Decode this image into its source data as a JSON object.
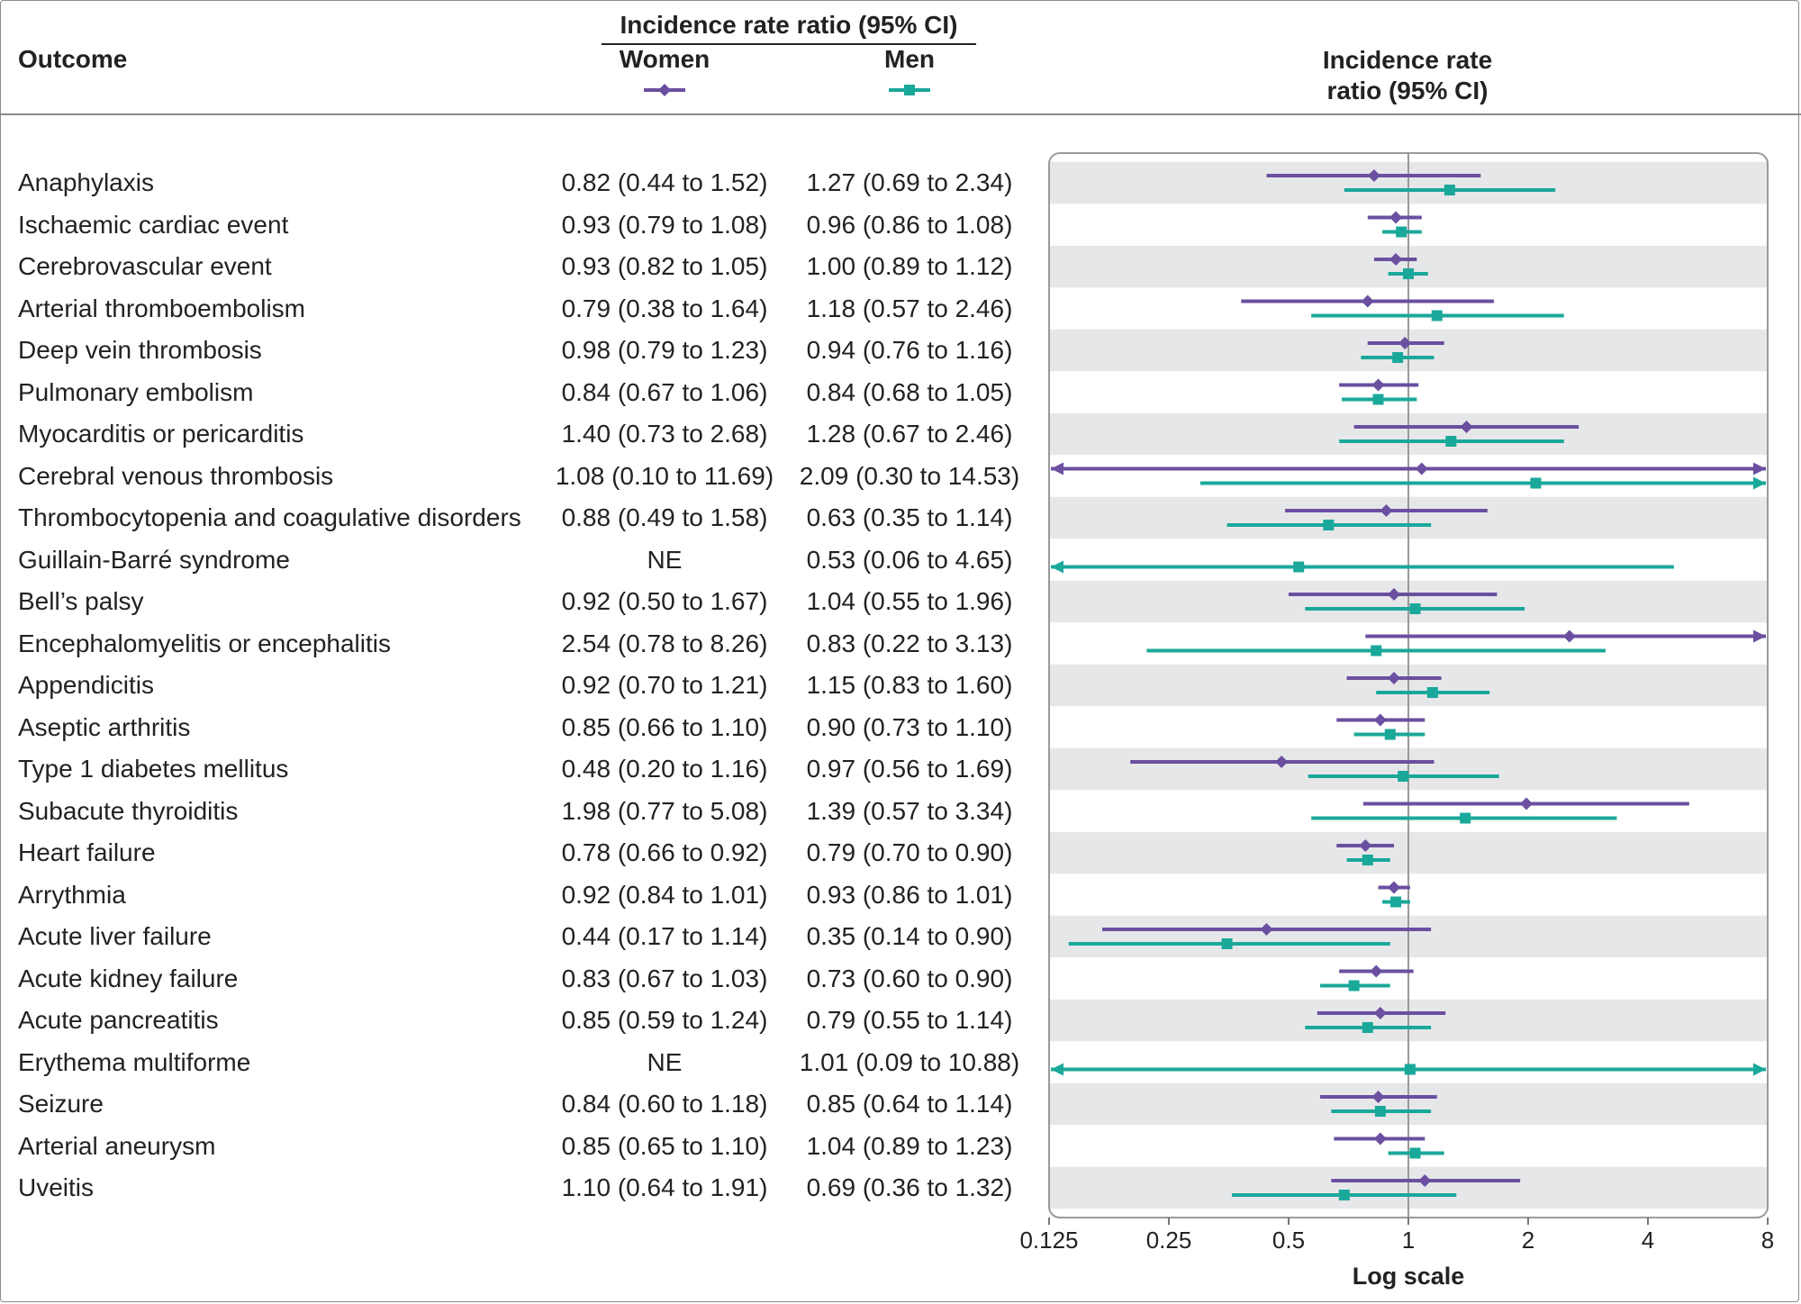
{
  "header": {
    "outcome_label": "Outcome",
    "group_label": "Incidence rate ratio (95% CI)",
    "women_label": "Women",
    "men_label": "Men",
    "plot_label_line1": "Incidence rate",
    "plot_label_line2": "ratio (95% CI)"
  },
  "colors": {
    "women": "#6b4fa0",
    "men": "#1aa89a",
    "band": "#e6e7e9",
    "refline": "#999999"
  },
  "chart_data": {
    "type": "forest",
    "xlabel": "Log scale",
    "xscale": "log2",
    "xlim": [
      0.125,
      8
    ],
    "xticks": [
      "0.125",
      "0.25",
      "0.5",
      "1",
      "2",
      "4",
      "8"
    ],
    "reference_line": 1,
    "series": [
      {
        "name": "Women",
        "marker": "diamond"
      },
      {
        "name": "Men",
        "marker": "square"
      }
    ],
    "rows": [
      {
        "outcome": "Anaphylaxis",
        "women_text": "0.82 (0.44 to 1.52)",
        "men_text": "1.27 (0.69 to 2.34)",
        "women": [
          0.82,
          0.44,
          1.52
        ],
        "men": [
          1.27,
          0.69,
          2.34
        ]
      },
      {
        "outcome": "Ischaemic cardiac event",
        "women_text": "0.93 (0.79 to 1.08)",
        "men_text": "0.96 (0.86 to 1.08)",
        "women": [
          0.93,
          0.79,
          1.08
        ],
        "men": [
          0.96,
          0.86,
          1.08
        ]
      },
      {
        "outcome": "Cerebrovascular event",
        "women_text": "0.93 (0.82 to 1.05)",
        "men_text": "1.00 (0.89 to 1.12)",
        "women": [
          0.93,
          0.82,
          1.05
        ],
        "men": [
          1.0,
          0.89,
          1.12
        ]
      },
      {
        "outcome": "Arterial thromboembolism",
        "women_text": "0.79 (0.38 to 1.64)",
        "men_text": "1.18 (0.57 to 2.46)",
        "women": [
          0.79,
          0.38,
          1.64
        ],
        "men": [
          1.18,
          0.57,
          2.46
        ]
      },
      {
        "outcome": "Deep vein thrombosis",
        "women_text": "0.98 (0.79 to 1.23)",
        "men_text": "0.94 (0.76 to 1.16)",
        "women": [
          0.98,
          0.79,
          1.23
        ],
        "men": [
          0.94,
          0.76,
          1.16
        ]
      },
      {
        "outcome": "Pulmonary embolism",
        "women_text": "0.84 (0.67 to 1.06)",
        "men_text": "0.84 (0.68 to 1.05)",
        "women": [
          0.84,
          0.67,
          1.06
        ],
        "men": [
          0.84,
          0.68,
          1.05
        ]
      },
      {
        "outcome": "Myocarditis or pericarditis",
        "women_text": "1.40 (0.73 to 2.68)",
        "men_text": "1.28 (0.67 to 2.46)",
        "women": [
          1.4,
          0.73,
          2.68
        ],
        "men": [
          1.28,
          0.67,
          2.46
        ]
      },
      {
        "outcome": "Cerebral venous thrombosis",
        "women_text": "1.08 (0.10 to 11.69)",
        "men_text": "2.09 (0.30 to 14.53)",
        "women": [
          1.08,
          0.1,
          11.69
        ],
        "men": [
          2.09,
          0.3,
          14.53
        ]
      },
      {
        "outcome": "Thrombocytopenia and coagulative disorders",
        "women_text": "0.88 (0.49 to 1.58)",
        "men_text": "0.63 (0.35 to 1.14)",
        "women": [
          0.88,
          0.49,
          1.58
        ],
        "men": [
          0.63,
          0.35,
          1.14
        ]
      },
      {
        "outcome": "Guillain-Barré syndrome",
        "women_text": "NE",
        "men_text": "0.53 (0.06 to 4.65)",
        "women": null,
        "men": [
          0.53,
          0.06,
          4.65
        ]
      },
      {
        "outcome": "Bell’s palsy",
        "women_text": "0.92 (0.50 to 1.67)",
        "men_text": "1.04 (0.55 to 1.96)",
        "women": [
          0.92,
          0.5,
          1.67
        ],
        "men": [
          1.04,
          0.55,
          1.96
        ]
      },
      {
        "outcome": "Encephalomyelitis or encephalitis",
        "women_text": "2.54 (0.78 to 8.26)",
        "men_text": "0.83 (0.22 to 3.13)",
        "women": [
          2.54,
          0.78,
          8.26
        ],
        "men": [
          0.83,
          0.22,
          3.13
        ]
      },
      {
        "outcome": "Appendicitis",
        "women_text": "0.92 (0.70 to 1.21)",
        "men_text": "1.15 (0.83 to 1.60)",
        "women": [
          0.92,
          0.7,
          1.21
        ],
        "men": [
          1.15,
          0.83,
          1.6
        ]
      },
      {
        "outcome": "Aseptic arthritis",
        "women_text": "0.85 (0.66 to 1.10)",
        "men_text": "0.90 (0.73 to 1.10)",
        "women": [
          0.85,
          0.66,
          1.1
        ],
        "men": [
          0.9,
          0.73,
          1.1
        ]
      },
      {
        "outcome": "Type 1 diabetes mellitus",
        "women_text": "0.48 (0.20 to 1.16)",
        "men_text": "0.97 (0.56 to 1.69)",
        "women": [
          0.48,
          0.2,
          1.16
        ],
        "men": [
          0.97,
          0.56,
          1.69
        ]
      },
      {
        "outcome": "Subacute thyroiditis",
        "women_text": "1.98 (0.77 to 5.08)",
        "men_text": "1.39 (0.57 to 3.34)",
        "women": [
          1.98,
          0.77,
          5.08
        ],
        "men": [
          1.39,
          0.57,
          3.34
        ]
      },
      {
        "outcome": "Heart failure",
        "women_text": "0.78 (0.66 to 0.92)",
        "men_text": "0.79 (0.70 to 0.90)",
        "women": [
          0.78,
          0.66,
          0.92
        ],
        "men": [
          0.79,
          0.7,
          0.9
        ]
      },
      {
        "outcome": "Arrythmia",
        "women_text": "0.92 (0.84 to 1.01)",
        "men_text": "0.93 (0.86 to 1.01)",
        "women": [
          0.92,
          0.84,
          1.01
        ],
        "men": [
          0.93,
          0.86,
          1.01
        ]
      },
      {
        "outcome": "Acute liver failure",
        "women_text": "0.44 (0.17 to 1.14)",
        "men_text": "0.35 (0.14 to 0.90)",
        "women": [
          0.44,
          0.17,
          1.14
        ],
        "men": [
          0.35,
          0.14,
          0.9
        ]
      },
      {
        "outcome": "Acute kidney failure",
        "women_text": "0.83 (0.67 to 1.03)",
        "men_text": "0.73 (0.60 to 0.90)",
        "women": [
          0.83,
          0.67,
          1.03
        ],
        "men": [
          0.73,
          0.6,
          0.9
        ]
      },
      {
        "outcome": "Acute pancreatitis",
        "women_text": "0.85 (0.59 to 1.24)",
        "men_text": "0.79 (0.55 to 1.14)",
        "women": [
          0.85,
          0.59,
          1.24
        ],
        "men": [
          0.79,
          0.55,
          1.14
        ]
      },
      {
        "outcome": "Erythema multiforme",
        "women_text": "NE",
        "men_text": "1.01 (0.09 to 10.88)",
        "women": null,
        "men": [
          1.01,
          0.09,
          10.88
        ]
      },
      {
        "outcome": "Seizure",
        "women_text": "0.84 (0.60 to 1.18)",
        "men_text": "0.85 (0.64 to 1.14)",
        "women": [
          0.84,
          0.6,
          1.18
        ],
        "men": [
          0.85,
          0.64,
          1.14
        ]
      },
      {
        "outcome": "Arterial aneurysm",
        "women_text": "0.85 (0.65 to 1.10)",
        "men_text": "1.04 (0.89 to 1.23)",
        "women": [
          0.85,
          0.65,
          1.1
        ],
        "men": [
          1.04,
          0.89,
          1.23
        ]
      },
      {
        "outcome": "Uveitis",
        "women_text": "1.10 (0.64 to 1.91)",
        "men_text": "0.69 (0.36 to 1.32)",
        "women": [
          1.1,
          0.64,
          1.91
        ],
        "men": [
          0.69,
          0.36,
          1.32
        ]
      }
    ]
  }
}
